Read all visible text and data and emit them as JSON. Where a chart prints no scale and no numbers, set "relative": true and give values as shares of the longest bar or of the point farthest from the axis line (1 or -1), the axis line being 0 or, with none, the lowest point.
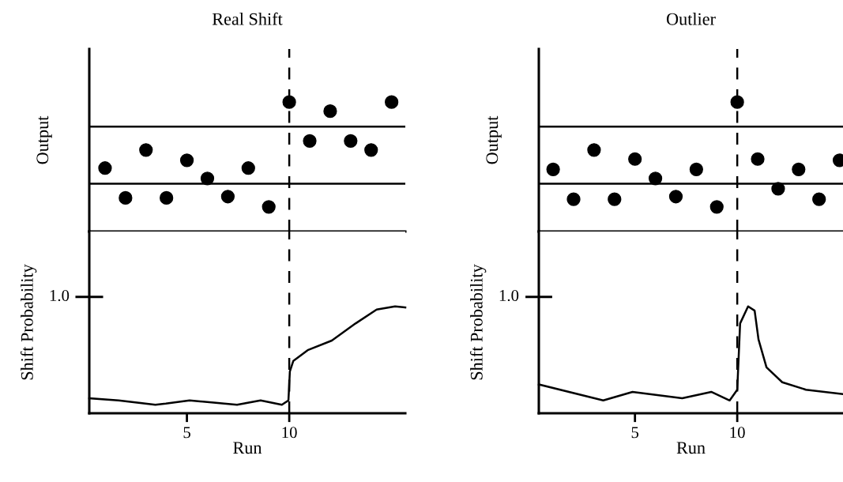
{
  "chart_data": [
    {
      "type": "scatter",
      "title": "Real Shift",
      "ylabel": "Output",
      "relative": true,
      "tick_labels": false,
      "marker": "circle",
      "grid": false,
      "legend": false,
      "xlim": [
        0.23,
        15.67
      ],
      "series": [
        {
          "color": "#000000",
          "x": [
            1,
            2,
            3,
            4,
            5,
            6,
            7,
            8,
            9,
            10,
            11,
            12,
            13,
            14,
            15
          ],
          "values": [
            0.49,
            0.26,
            0.63,
            0.26,
            0.55,
            0.41,
            0.27,
            0.49,
            0.19,
            1,
            0.7,
            0.93,
            0.7,
            0.63,
            1
          ]
        }
      ],
      "ref_lines": [
        {
          "axis": "y",
          "value": 0.37,
          "color": "#000000",
          "line_style": "solid"
        },
        {
          "axis": "y",
          "value": 0.81,
          "color": "#000000",
          "line_style": "solid"
        },
        {
          "axis": "x",
          "value": 10,
          "color": "#000000",
          "line_style": "dashed"
        }
      ]
    },
    {
      "type": "scatter",
      "title": "Outlier",
      "ylabel": "Output",
      "relative": true,
      "tick_labels": false,
      "marker": "circle",
      "grid": false,
      "legend": false,
      "xlim": [
        0.3,
        15.17
      ],
      "series": [
        {
          "color": "#000000",
          "x": [
            1,
            2,
            3,
            4,
            5,
            6,
            7,
            8,
            9,
            10,
            11,
            12,
            13,
            14,
            15
          ],
          "values": [
            0.48,
            0.25,
            0.63,
            0.25,
            0.56,
            0.41,
            0.27,
            0.48,
            0.19,
            1,
            0.56,
            0.33,
            0.48,
            0.25,
            0.55
          ]
        }
      ],
      "ref_lines": [
        {
          "axis": "y",
          "value": 0.37,
          "color": "#000000",
          "line_style": "solid"
        },
        {
          "axis": "y",
          "value": 0.81,
          "color": "#000000",
          "line_style": "solid"
        },
        {
          "axis": "x",
          "value": 10,
          "color": "#000000",
          "line_style": "dashed"
        }
      ]
    },
    {
      "type": "line",
      "xlabel": "Run",
      "ylabel": "Shift Probability",
      "marker": "none",
      "line_style": "solid",
      "grid": false,
      "legend": false,
      "relative": true,
      "tick_labels": "x",
      "xlim": [
        0.23,
        15.67
      ],
      "xticks": [
        5,
        10
      ],
      "annotations": [
        "1.0"
      ],
      "series": [
        {
          "color": "#000000",
          "x": [
            0.23,
            1.66,
            3.46,
            3.97,
            5.13,
            7.45,
            8.6,
            9.64,
            9.96,
            10.03,
            10.2,
            10.9,
            12.08,
            13.24,
            14.27,
            15.17,
            15.67
          ],
          "values": [
            0.14,
            0.12,
            0.08,
            0.09,
            0.12,
            0.08,
            0.12,
            0.08,
            0.12,
            0.39,
            0.49,
            0.59,
            0.68,
            0.84,
            0.97,
            1,
            0.99
          ]
        }
      ],
      "ref_lines": [
        {
          "axis": "x",
          "value": 10,
          "color": "#000000",
          "line_style": "dashed"
        }
      ]
    },
    {
      "type": "line",
      "xlabel": "Run",
      "ylabel": "Shift Probability",
      "marker": "none",
      "line_style": "solid",
      "grid": false,
      "legend": false,
      "relative": true,
      "tick_labels": "x",
      "xlim": [
        0.3,
        15.17
      ],
      "xticks": [
        5,
        10
      ],
      "annotations": [
        "1.0"
      ],
      "series": [
        {
          "color": "#000000",
          "x": [
            0.3,
            3.45,
            4.88,
            7.31,
            8.73,
            9.63,
            10.0,
            10.14,
            10.53,
            10.85,
            11.04,
            11.43,
            12.2,
            13.36,
            15.17
          ],
          "values": [
            0.27,
            0.12,
            0.2,
            0.14,
            0.2,
            0.12,
            0.22,
            0.84,
            1,
            0.96,
            0.69,
            0.43,
            0.29,
            0.22,
            0.18
          ]
        }
      ],
      "ref_lines": [
        {
          "axis": "x",
          "value": 10,
          "color": "#000000",
          "line_style": "dashed"
        }
      ]
    }
  ]
}
